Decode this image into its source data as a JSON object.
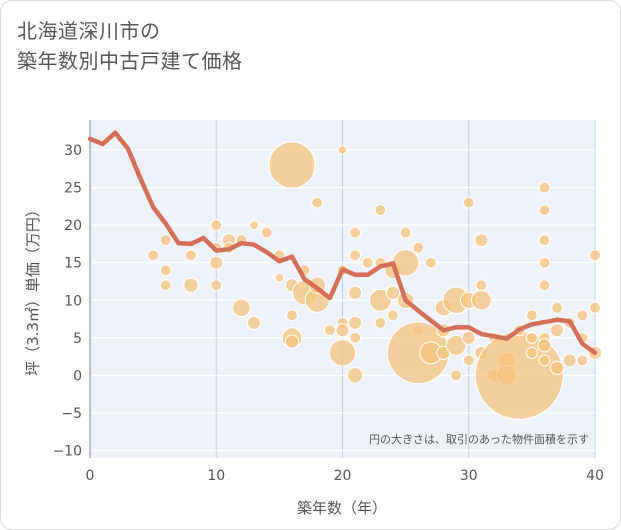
{
  "header": {
    "title_line1": "北海道深川市の",
    "title_line2": "築年数別中古戸建て価格"
  },
  "chart_data": {
    "type": "scatter",
    "title": "北海道深川市の 築年数別中古戸建て価格",
    "xlabel": "築年数（年）",
    "ylabel": "坪（3.3㎡）単価（万円）",
    "xlim": [
      0,
      40
    ],
    "ylim": [
      -11,
      34
    ],
    "xticks": [
      "0",
      "10",
      "20",
      "30",
      "40"
    ],
    "yticks": [
      "−10",
      "−5",
      "0",
      "5",
      "10",
      "15",
      "20",
      "25",
      "30"
    ],
    "annotation": "円の大きさは、取引のあった物件面積を示す",
    "colors": {
      "bubble": "#f5c27a",
      "line": "#d4705a"
    },
    "bubbles": [
      {
        "x": 5,
        "y": 16,
        "s": 1
      },
      {
        "x": 6,
        "y": 14,
        "s": 1
      },
      {
        "x": 6,
        "y": 12,
        "s": 1
      },
      {
        "x": 6,
        "y": 18,
        "s": 1
      },
      {
        "x": 8,
        "y": 12,
        "s": 1.3
      },
      {
        "x": 8,
        "y": 16,
        "s": 1
      },
      {
        "x": 10,
        "y": 20,
        "s": 1
      },
      {
        "x": 10,
        "y": 17,
        "s": 1
      },
      {
        "x": 10,
        "y": 15,
        "s": 1.2
      },
      {
        "x": 10,
        "y": 12,
        "s": 1
      },
      {
        "x": 11,
        "y": 18,
        "s": 1.2
      },
      {
        "x": 11,
        "y": 17,
        "s": 1
      },
      {
        "x": 12,
        "y": 18,
        "s": 1
      },
      {
        "x": 12,
        "y": 9,
        "s": 1.6
      },
      {
        "x": 13,
        "y": 20,
        "s": 0.8
      },
      {
        "x": 13,
        "y": 7,
        "s": 1.2
      },
      {
        "x": 14,
        "y": 19,
        "s": 1
      },
      {
        "x": 15,
        "y": 16,
        "s": 1
      },
      {
        "x": 15,
        "y": 13,
        "s": 0.8
      },
      {
        "x": 16,
        "y": 28,
        "s": 4.2
      },
      {
        "x": 16,
        "y": 12,
        "s": 1.2
      },
      {
        "x": 16,
        "y": 8,
        "s": 1
      },
      {
        "x": 16,
        "y": 5,
        "s": 1.8
      },
      {
        "x": 16,
        "y": 4.5,
        "s": 1.2
      },
      {
        "x": 17,
        "y": 11,
        "s": 2.2
      },
      {
        "x": 17,
        "y": 14,
        "s": 1
      },
      {
        "x": 18,
        "y": 23,
        "s": 1
      },
      {
        "x": 18,
        "y": 10,
        "s": 2.2
      },
      {
        "x": 18,
        "y": 12,
        "s": 1.5
      },
      {
        "x": 19,
        "y": 6,
        "s": 1
      },
      {
        "x": 20,
        "y": 30,
        "s": 0.8
      },
      {
        "x": 20,
        "y": 14,
        "s": 1
      },
      {
        "x": 20,
        "y": 7,
        "s": 1
      },
      {
        "x": 20,
        "y": 6,
        "s": 1.2
      },
      {
        "x": 20,
        "y": 3,
        "s": 2.4
      },
      {
        "x": 21,
        "y": 19,
        "s": 1
      },
      {
        "x": 21,
        "y": 16,
        "s": 1
      },
      {
        "x": 21,
        "y": 11,
        "s": 1.2
      },
      {
        "x": 21,
        "y": 7,
        "s": 1.2
      },
      {
        "x": 21,
        "y": 5,
        "s": 1
      },
      {
        "x": 21,
        "y": 0,
        "s": 1.4
      },
      {
        "x": 22,
        "y": 15,
        "s": 1
      },
      {
        "x": 23,
        "y": 22,
        "s": 1
      },
      {
        "x": 23,
        "y": 15,
        "s": 1
      },
      {
        "x": 23,
        "y": 10,
        "s": 2
      },
      {
        "x": 23,
        "y": 7,
        "s": 1
      },
      {
        "x": 24,
        "y": 14,
        "s": 1.5
      },
      {
        "x": 24,
        "y": 11,
        "s": 1.2
      },
      {
        "x": 24,
        "y": 8,
        "s": 1
      },
      {
        "x": 25,
        "y": 19,
        "s": 1
      },
      {
        "x": 25,
        "y": 15,
        "s": 2.4
      },
      {
        "x": 25,
        "y": 10,
        "s": 1.5
      },
      {
        "x": 26,
        "y": 17,
        "s": 1
      },
      {
        "x": 26,
        "y": 6,
        "s": 1
      },
      {
        "x": 26,
        "y": 3,
        "s": 5.6
      },
      {
        "x": 27,
        "y": 15,
        "s": 1
      },
      {
        "x": 27,
        "y": 3,
        "s": 2
      },
      {
        "x": 28,
        "y": 9,
        "s": 1.5
      },
      {
        "x": 28,
        "y": 6,
        "s": 1.2
      },
      {
        "x": 28,
        "y": 3,
        "s": 1.2
      },
      {
        "x": 29,
        "y": 10,
        "s": 2.4
      },
      {
        "x": 29,
        "y": 4,
        "s": 1.8
      },
      {
        "x": 29,
        "y": 0,
        "s": 1
      },
      {
        "x": 30,
        "y": 23,
        "s": 1
      },
      {
        "x": 30,
        "y": 10,
        "s": 1.5
      },
      {
        "x": 30,
        "y": 5,
        "s": 1.2
      },
      {
        "x": 30,
        "y": 2,
        "s": 1
      },
      {
        "x": 31,
        "y": 18,
        "s": 1.2
      },
      {
        "x": 31,
        "y": 12,
        "s": 1
      },
      {
        "x": 31,
        "y": 10,
        "s": 1.8
      },
      {
        "x": 31,
        "y": 3,
        "s": 1.2
      },
      {
        "x": 32,
        "y": 5,
        "s": 1
      },
      {
        "x": 32,
        "y": 0,
        "s": 1.2
      },
      {
        "x": 33,
        "y": 2,
        "s": 1.5
      },
      {
        "x": 33,
        "y": 0,
        "s": 1.8
      },
      {
        "x": 34,
        "y": 0,
        "s": 8
      },
      {
        "x": 34,
        "y": 6,
        "s": 1
      },
      {
        "x": 35,
        "y": 8,
        "s": 1
      },
      {
        "x": 35,
        "y": 5,
        "s": 1
      },
      {
        "x": 35,
        "y": 3,
        "s": 1
      },
      {
        "x": 36,
        "y": 25,
        "s": 1
      },
      {
        "x": 36,
        "y": 22,
        "s": 1
      },
      {
        "x": 36,
        "y": 18,
        "s": 1
      },
      {
        "x": 36,
        "y": 15,
        "s": 1
      },
      {
        "x": 36,
        "y": 12,
        "s": 1
      },
      {
        "x": 36,
        "y": 5,
        "s": 1
      },
      {
        "x": 36,
        "y": 4,
        "s": 1.2
      },
      {
        "x": 36,
        "y": 2,
        "s": 1
      },
      {
        "x": 37,
        "y": 9,
        "s": 1
      },
      {
        "x": 37,
        "y": 6,
        "s": 1.2
      },
      {
        "x": 37,
        "y": 1,
        "s": 1.2
      },
      {
        "x": 38,
        "y": 7,
        "s": 1
      },
      {
        "x": 38,
        "y": 2,
        "s": 1.2
      },
      {
        "x": 39,
        "y": 8,
        "s": 1
      },
      {
        "x": 39,
        "y": 5,
        "s": 1
      },
      {
        "x": 39,
        "y": 2,
        "s": 1
      },
      {
        "x": 40,
        "y": 16,
        "s": 1
      },
      {
        "x": 40,
        "y": 9,
        "s": 1
      },
      {
        "x": 40,
        "y": 3,
        "s": 1.2
      }
    ],
    "trend": {
      "x": [
        0,
        1,
        2,
        3,
        4,
        5,
        6,
        7,
        8,
        9,
        10,
        11,
        12,
        13,
        14,
        15,
        16,
        17,
        18,
        19,
        20,
        21,
        22,
        23,
        24,
        25,
        26,
        27,
        28,
        29,
        30,
        31,
        32,
        33,
        34,
        35,
        36,
        37,
        38,
        39,
        40
      ],
      "y": [
        31.5,
        30.8,
        32.3,
        30.2,
        26.2,
        22.4,
        20.2,
        17.6,
        17.5,
        18.3,
        16.6,
        16.8,
        17.6,
        17.4,
        16.4,
        15.2,
        15.8,
        12.8,
        11.6,
        10.3,
        14.1,
        13.4,
        13.4,
        14.5,
        14.9,
        10.0,
        8.6,
        7.3,
        6.0,
        6.4,
        6.4,
        5.5,
        5.2,
        4.9,
        6.1,
        6.8,
        7.1,
        7.4,
        7.2,
        4.2,
        3.0
      ]
    }
  }
}
